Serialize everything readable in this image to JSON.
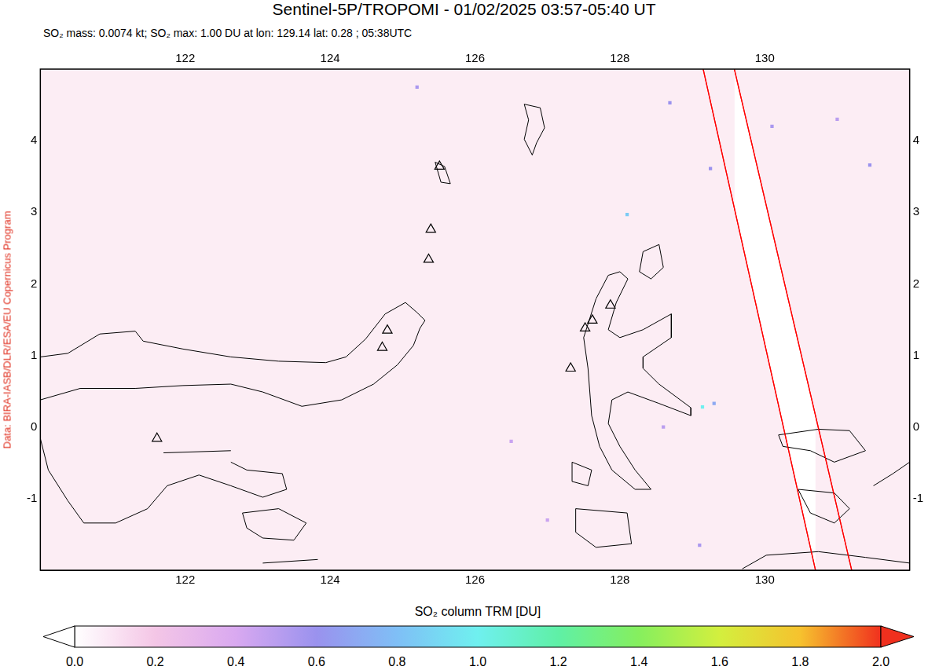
{
  "chart_data": {
    "type": "scatter",
    "title": "Sentinel-5P/TROPOMI - 01/02/2025 03:57-05:40 UT",
    "subtitle": "SO₂ mass: 0.0074 kt; SO₂ max: 1.00 DU at lon: 129.14 lat: 0.28 ; 05:38UTC",
    "credit": "Data: BIRA-IASB/DLR/ESA/EU Copernicus Program",
    "xlim": [
      120,
      132
    ],
    "ylim": [
      -2,
      5
    ],
    "xticks": [
      122,
      124,
      126,
      128,
      130
    ],
    "yticks": [
      -1,
      0,
      1,
      2,
      3,
      4
    ],
    "grid": true,
    "volcanoes": [
      [
        121.61,
        -0.16
      ],
      [
        124.79,
        1.35
      ],
      [
        124.72,
        1.11
      ],
      [
        125.36,
        2.34
      ],
      [
        125.39,
        2.76
      ],
      [
        125.51,
        3.64
      ],
      [
        127.32,
        0.82
      ],
      [
        127.52,
        1.38
      ],
      [
        127.62,
        1.49
      ],
      [
        127.87,
        1.7
      ]
    ],
    "swath_edges": [
      [
        [
          129.15,
          5
        ],
        [
          130.7,
          -2
        ]
      ],
      [
        [
          129.58,
          5
        ],
        [
          131.2,
          -2
        ]
      ]
    ],
    "so2_pixels": [
      [
        129.14,
        0.28,
        1.0
      ],
      [
        128.1,
        2.97,
        0.85
      ],
      [
        129.25,
        3.61,
        0.6
      ],
      [
        131.45,
        3.66,
        0.6
      ],
      [
        128.69,
        4.53,
        0.6
      ],
      [
        125.2,
        4.75,
        0.55
      ],
      [
        129.3,
        0.33,
        0.7
      ],
      [
        128.6,
        0.0,
        0.5
      ],
      [
        129.1,
        -1.65,
        0.55
      ],
      [
        130.1,
        4.2,
        0.55
      ],
      [
        131.0,
        4.3,
        0.5
      ],
      [
        127.0,
        -1.3,
        0.45
      ],
      [
        126.5,
        -0.2,
        0.45
      ]
    ],
    "coastlines": [
      [
        [
          120.0,
          0.98
        ],
        [
          120.38,
          1.03
        ],
        [
          120.82,
          1.3
        ],
        [
          121.31,
          1.34
        ],
        [
          121.42,
          1.2
        ],
        [
          121.97,
          1.09
        ],
        [
          122.63,
          0.98
        ],
        [
          123.29,
          0.92
        ],
        [
          123.94,
          0.9
        ],
        [
          124.22,
          0.98
        ],
        [
          124.49,
          1.23
        ],
        [
          124.76,
          1.58
        ],
        [
          125.04,
          1.74
        ],
        [
          125.2,
          1.6
        ],
        [
          125.31,
          1.49
        ],
        [
          125.24,
          1.38
        ],
        [
          125.15,
          1.14
        ],
        [
          124.93,
          0.87
        ],
        [
          124.6,
          0.6
        ],
        [
          124.16,
          0.38
        ],
        [
          123.61,
          0.29
        ],
        [
          123.07,
          0.49
        ],
        [
          122.63,
          0.6
        ],
        [
          121.97,
          0.58
        ],
        [
          121.31,
          0.54
        ],
        [
          120.55,
          0.54
        ],
        [
          120.0,
          0.38
        ]
      ],
      [
        [
          120.0,
          -0.16
        ],
        [
          120.11,
          -0.6
        ],
        [
          120.38,
          -1.03
        ],
        [
          120.6,
          -1.34
        ],
        [
          121.04,
          -1.34
        ],
        [
          121.48,
          -1.14
        ],
        [
          121.75,
          -0.82
        ],
        [
          122.19,
          -0.67
        ],
        [
          122.63,
          -0.82
        ],
        [
          123.07,
          -0.98
        ],
        [
          123.4,
          -0.87
        ],
        [
          123.34,
          -0.65
        ],
        [
          122.85,
          -0.6
        ],
        [
          122.63,
          -0.49
        ]
      ],
      [
        [
          122.79,
          -1.2
        ],
        [
          123.29,
          -1.14
        ],
        [
          123.67,
          -1.34
        ],
        [
          123.5,
          -1.58
        ],
        [
          123.07,
          -1.55
        ],
        [
          122.85,
          -1.41
        ],
        [
          122.79,
          -1.2
        ]
      ],
      [
        [
          121.7,
          -0.36
        ],
        [
          122.63,
          -0.33
        ]
      ],
      [
        [
          125.45,
          3.7
        ],
        [
          125.58,
          3.64
        ],
        [
          125.66,
          3.4
        ],
        [
          125.53,
          3.42
        ],
        [
          125.45,
          3.7
        ]
      ],
      [
        [
          126.68,
          4.51
        ],
        [
          126.9,
          4.46
        ],
        [
          126.96,
          4.18
        ],
        [
          126.85,
          3.97
        ],
        [
          126.79,
          3.8
        ],
        [
          126.68,
          4.02
        ],
        [
          126.74,
          4.29
        ],
        [
          126.68,
          4.51
        ]
      ],
      [
        [
          128.32,
          2.45
        ],
        [
          128.54,
          2.55
        ],
        [
          128.6,
          2.23
        ],
        [
          128.43,
          2.07
        ],
        [
          128.27,
          2.17
        ],
        [
          128.32,
          2.45
        ]
      ],
      [
        [
          128.0,
          2.17
        ],
        [
          128.11,
          2.07
        ],
        [
          127.95,
          1.74
        ],
        [
          127.84,
          1.36
        ],
        [
          128.0,
          1.25
        ],
        [
          128.32,
          1.36
        ],
        [
          128.71,
          1.58
        ],
        [
          128.71,
          1.25
        ],
        [
          128.32,
          0.98
        ],
        [
          128.32,
          0.82
        ],
        [
          128.54,
          0.6
        ],
        [
          128.98,
          0.27
        ],
        [
          128.98,
          0.16
        ],
        [
          128.54,
          0.33
        ],
        [
          128.11,
          0.49
        ],
        [
          127.89,
          0.38
        ],
        [
          127.84,
          0.05
        ],
        [
          128.0,
          -0.27
        ],
        [
          128.21,
          -0.6
        ],
        [
          128.43,
          -0.87
        ],
        [
          128.21,
          -0.87
        ],
        [
          127.89,
          -0.6
        ],
        [
          127.72,
          -0.27
        ],
        [
          127.61,
          0.16
        ],
        [
          127.56,
          0.82
        ],
        [
          127.5,
          1.25
        ],
        [
          127.67,
          1.79
        ],
        [
          127.84,
          2.12
        ],
        [
          128.0,
          2.17
        ]
      ],
      [
        [
          127.39,
          -1.14
        ],
        [
          128.1,
          -1.2
        ],
        [
          128.16,
          -1.63
        ],
        [
          127.67,
          -1.68
        ],
        [
          127.39,
          -1.47
        ],
        [
          127.39,
          -1.14
        ]
      ],
      [
        [
          127.34,
          -0.49
        ],
        [
          127.61,
          -0.6
        ],
        [
          127.56,
          -0.82
        ],
        [
          127.34,
          -0.76
        ],
        [
          127.34,
          -0.49
        ]
      ],
      [
        [
          130.19,
          -0.11
        ],
        [
          130.74,
          -0.03
        ],
        [
          131.17,
          -0.05
        ],
        [
          131.39,
          -0.33
        ],
        [
          130.96,
          -0.49
        ],
        [
          130.63,
          -0.33
        ],
        [
          130.25,
          -0.27
        ],
        [
          130.19,
          -0.11
        ]
      ],
      [
        [
          130.46,
          -0.87
        ],
        [
          130.96,
          -0.92
        ],
        [
          131.17,
          -1.14
        ],
        [
          130.96,
          -1.34
        ],
        [
          130.63,
          -1.2
        ],
        [
          130.46,
          -0.87
        ]
      ],
      [
        [
          131.5,
          -0.82
        ],
        [
          131.77,
          -0.65
        ],
        [
          132.0,
          -0.49
        ]
      ],
      [
        [
          129.69,
          -1.98
        ],
        [
          130.02,
          -1.79
        ],
        [
          130.74,
          -1.74
        ],
        [
          131.39,
          -1.82
        ],
        [
          132.0,
          -1.9
        ]
      ],
      [
        [
          123.07,
          -1.9
        ],
        [
          123.83,
          -1.85
        ]
      ]
    ],
    "colorbar": {
      "title": "SO₂ column TRM [DU]",
      "range": [
        0,
        2
      ],
      "ticks": [
        {
          "value": 0,
          "label": "0.0"
        },
        {
          "value": 0.2,
          "label": "0.2"
        },
        {
          "value": 0.4,
          "label": "0.4"
        },
        {
          "value": 0.6,
          "label": "0.6"
        },
        {
          "value": 0.8,
          "label": "0.8"
        },
        {
          "value": 1,
          "label": "1.0"
        },
        {
          "value": 1.2,
          "label": "1.2"
        },
        {
          "value": 1.4,
          "label": "1.4"
        },
        {
          "value": 1.6,
          "label": "1.6"
        },
        {
          "value": 1.8,
          "label": "1.8"
        },
        {
          "value": 2,
          "label": "2.0"
        }
      ]
    }
  }
}
